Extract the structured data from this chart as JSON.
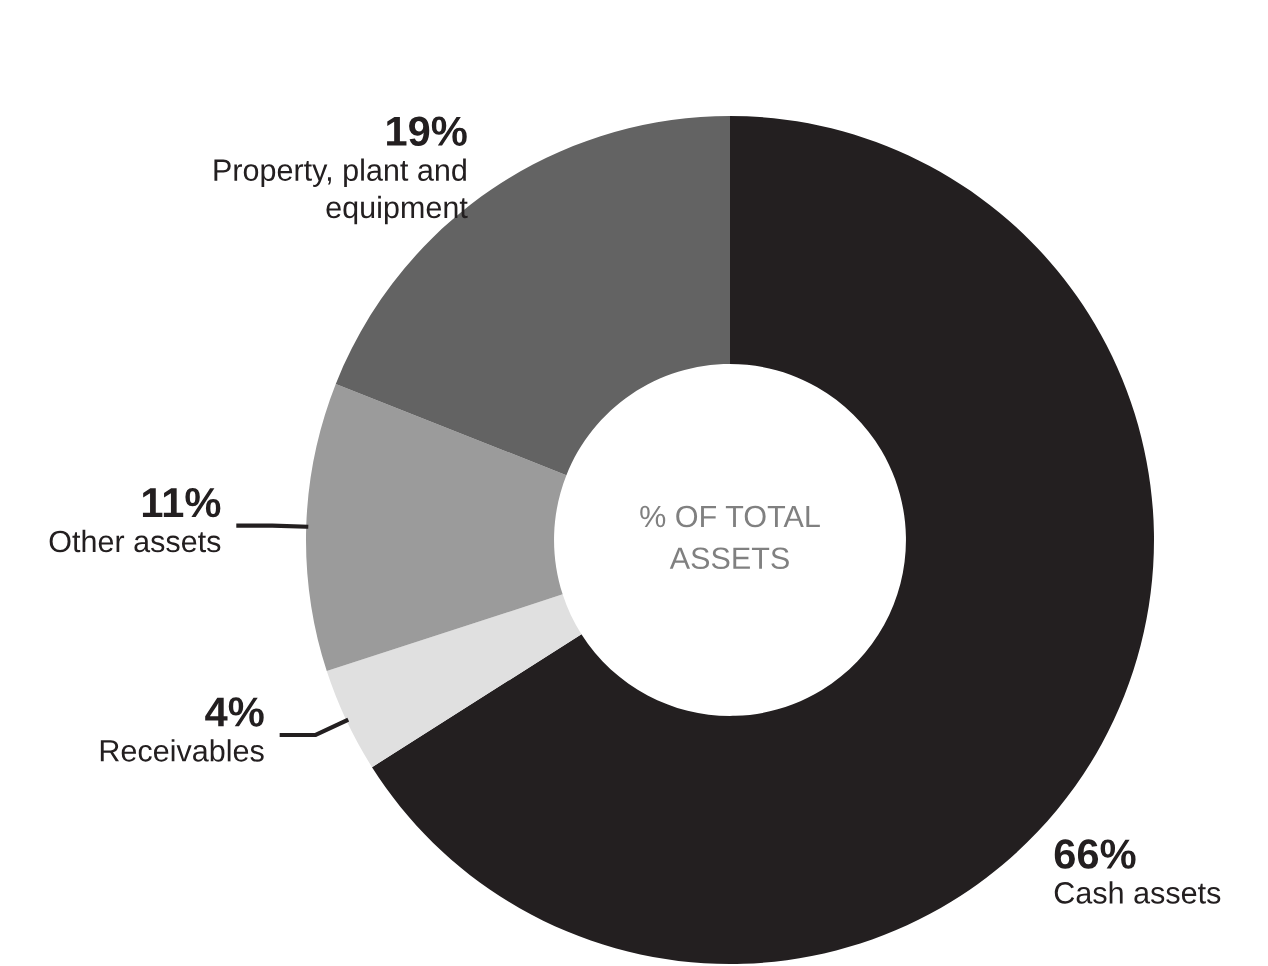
{
  "chart_data": {
    "type": "donut",
    "title": "% OF TOTAL\nASSETS",
    "categories": [
      "Cash assets",
      "Receivables",
      "Other assets",
      "Property, plant and\nequipment"
    ],
    "values": [
      66,
      4,
      11,
      19
    ],
    "colors": [
      "#231f20",
      "#e0e0e0",
      "#9b9b9b",
      "#636363"
    ],
    "value_labels": [
      "66%",
      "4%",
      "11%",
      "19%"
    ]
  }
}
